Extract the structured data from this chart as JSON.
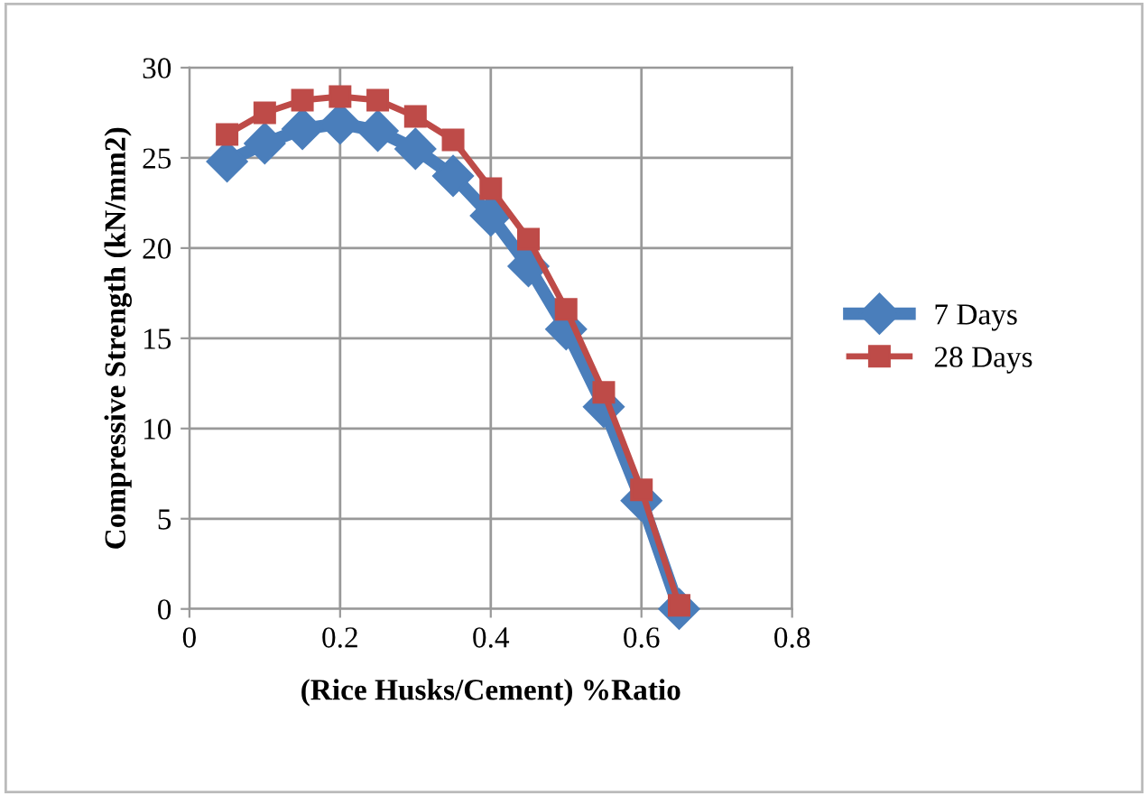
{
  "chart_data": {
    "type": "line",
    "xlabel": "(Rice Husks/Cement) %Ratio",
    "ylabel": "Compressive Strength (kN/mm2)",
    "x": [
      0.05,
      0.1,
      0.15,
      0.2,
      0.25,
      0.3,
      0.35,
      0.4,
      0.45,
      0.5,
      0.55,
      0.6,
      0.65
    ],
    "series": [
      {
        "name": "7 Days",
        "color": "#4a7ebb",
        "marker": "diamond",
        "values": [
          24.8,
          25.8,
          26.6,
          26.9,
          26.5,
          25.5,
          24.0,
          21.8,
          19.0,
          15.5,
          11.2,
          6.0,
          0.0
        ]
      },
      {
        "name": "28 Days",
        "color": "#be4b48",
        "marker": "square",
        "values": [
          26.3,
          27.5,
          28.2,
          28.4,
          28.2,
          27.3,
          26.0,
          23.3,
          20.5,
          16.6,
          12.0,
          6.6,
          0.2
        ]
      }
    ],
    "xlim": [
      0,
      0.8
    ],
    "xticks": [
      0,
      0.2,
      0.4,
      0.6,
      0.8
    ],
    "ylim": [
      0,
      30
    ],
    "yticks": [
      0,
      5,
      10,
      15,
      20,
      25,
      30
    ],
    "grid": true,
    "legend": "right",
    "line_style": "solid"
  }
}
